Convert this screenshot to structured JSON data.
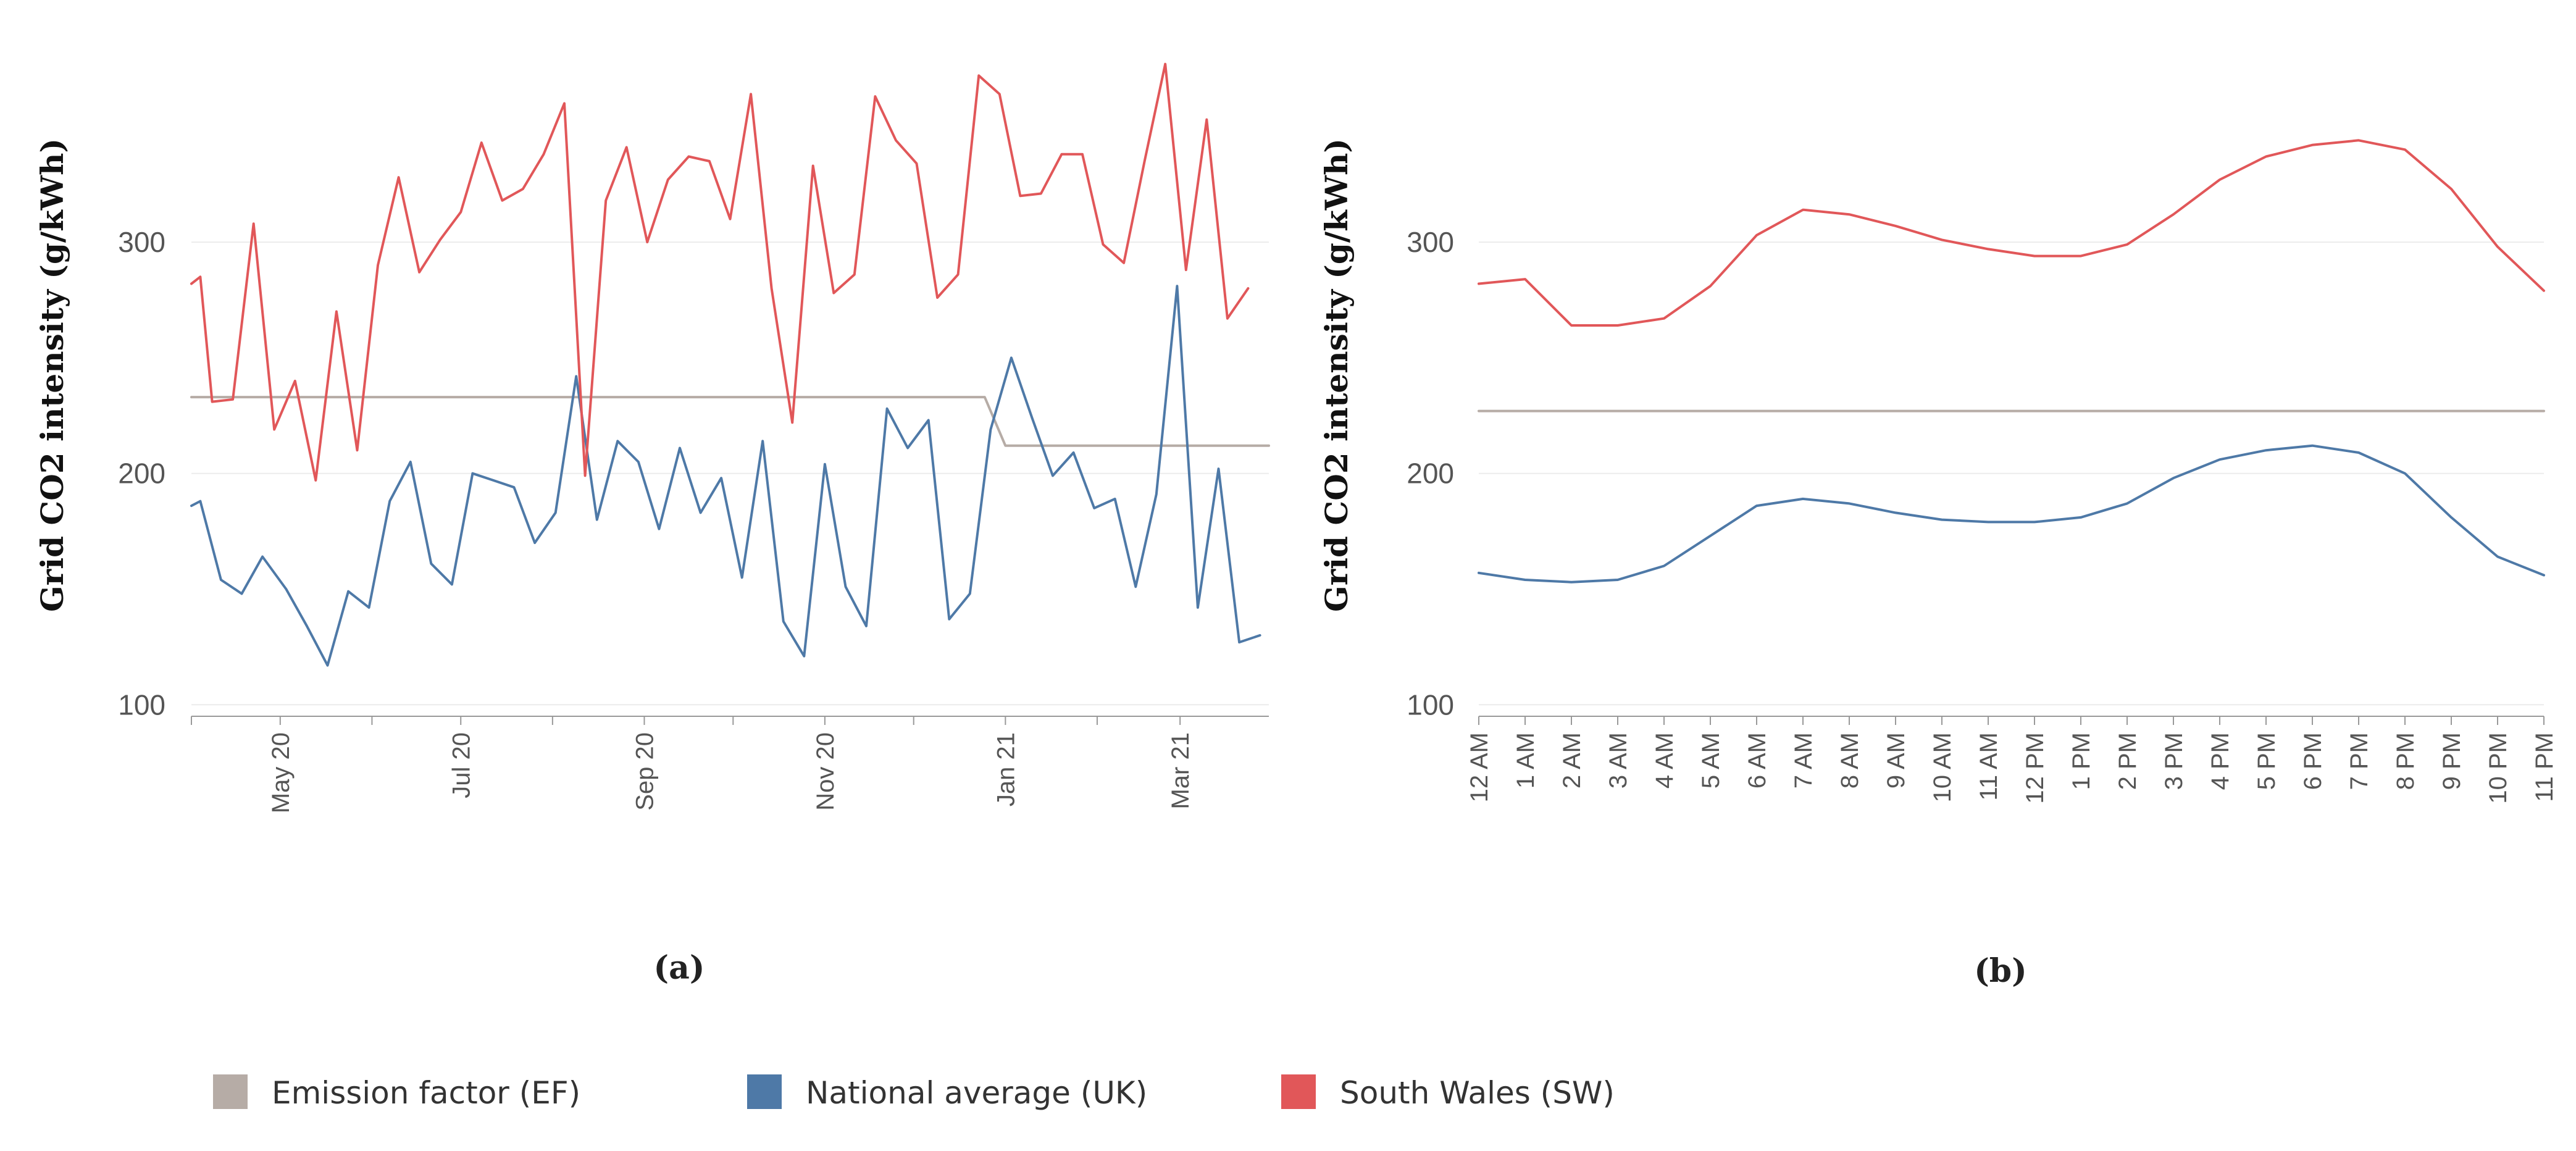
{
  "chart_data": [
    {
      "type": "line",
      "ylabel": "Grid CO2 intensity (g/kWh)",
      "caption": "(a)",
      "ylim": [
        95,
        390
      ],
      "yticks": [
        100,
        200,
        300
      ],
      "x_date_start": "2020-04-01",
      "x_date_end": "2021-03-31",
      "xticks": [
        {
          "label": "May 20",
          "date": "2020-05-01"
        },
        {
          "label": "Jul 20",
          "date": "2020-07-01"
        },
        {
          "label": "Sep 20",
          "date": "2020-09-01"
        },
        {
          "label": "Nov 20",
          "date": "2020-11-01"
        },
        {
          "label": "Jan 21",
          "date": "2021-01-01"
        },
        {
          "label": "Mar 21",
          "date": "2021-03-01"
        }
      ],
      "series": [
        {
          "name": "Emission factor (EF)",
          "color": "#b6aca6",
          "points": [
            [
              "2020-04-01",
              233
            ],
            [
              "2020-12-25",
              233
            ],
            [
              "2021-01-01",
              212
            ],
            [
              "2021-03-31",
              212
            ]
          ]
        },
        {
          "name": "National average (UK)",
          "color": "#4e79a7",
          "points": [
            [
              "2020-04-01",
              186
            ],
            [
              "2020-04-04",
              188
            ],
            [
              "2020-04-11",
              154
            ],
            [
              "2020-04-18",
              148
            ],
            [
              "2020-04-25",
              164
            ],
            [
              "2020-05-03",
              150
            ],
            [
              "2020-05-10",
              134
            ],
            [
              "2020-05-17",
              117
            ],
            [
              "2020-05-24",
              149
            ],
            [
              "2020-05-31",
              142
            ],
            [
              "2020-06-07",
              188
            ],
            [
              "2020-06-14",
              205
            ],
            [
              "2020-06-21",
              161
            ],
            [
              "2020-06-28",
              152
            ],
            [
              "2020-07-05",
              200
            ],
            [
              "2020-07-12",
              197
            ],
            [
              "2020-07-19",
              194
            ],
            [
              "2020-07-26",
              170
            ],
            [
              "2020-08-02",
              183
            ],
            [
              "2020-08-09",
              242
            ],
            [
              "2020-08-16",
              180
            ],
            [
              "2020-08-23",
              214
            ],
            [
              "2020-08-30",
              205
            ],
            [
              "2020-09-06",
              176
            ],
            [
              "2020-09-13",
              211
            ],
            [
              "2020-09-20",
              183
            ],
            [
              "2020-09-27",
              198
            ],
            [
              "2020-10-04",
              155
            ],
            [
              "2020-10-11",
              214
            ],
            [
              "2020-10-18",
              136
            ],
            [
              "2020-10-25",
              121
            ],
            [
              "2020-11-01",
              204
            ],
            [
              "2020-11-08",
              151
            ],
            [
              "2020-11-15",
              134
            ],
            [
              "2020-11-22",
              228
            ],
            [
              "2020-11-29",
              211
            ],
            [
              "2020-12-06",
              223
            ],
            [
              "2020-12-13",
              137
            ],
            [
              "2020-12-20",
              148
            ],
            [
              "2020-12-27",
              219
            ],
            [
              "2021-01-03",
              250
            ],
            [
              "2021-01-10",
              224
            ],
            [
              "2021-01-17",
              199
            ],
            [
              "2021-01-24",
              209
            ],
            [
              "2021-01-31",
              185
            ],
            [
              "2021-02-07",
              189
            ],
            [
              "2021-02-14",
              151
            ],
            [
              "2021-02-21",
              191
            ],
            [
              "2021-02-28",
              281
            ],
            [
              "2021-03-07",
              142
            ],
            [
              "2021-03-14",
              202
            ],
            [
              "2021-03-21",
              127
            ],
            [
              "2021-03-28",
              130
            ]
          ]
        },
        {
          "name": "South Wales (SW)",
          "color": "#e15759",
          "points": [
            [
              "2020-04-01",
              282
            ],
            [
              "2020-04-04",
              285
            ],
            [
              "2020-04-08",
              231
            ],
            [
              "2020-04-15",
              232
            ],
            [
              "2020-04-22",
              308
            ],
            [
              "2020-04-29",
              219
            ],
            [
              "2020-05-06",
              240
            ],
            [
              "2020-05-13",
              197
            ],
            [
              "2020-05-20",
              270
            ],
            [
              "2020-05-27",
              210
            ],
            [
              "2020-06-03",
              290
            ],
            [
              "2020-06-10",
              328
            ],
            [
              "2020-06-17",
              287
            ],
            [
              "2020-06-24",
              301
            ],
            [
              "2020-07-01",
              313
            ],
            [
              "2020-07-08",
              343
            ],
            [
              "2020-07-15",
              318
            ],
            [
              "2020-07-22",
              323
            ],
            [
              "2020-07-29",
              338
            ],
            [
              "2020-08-05",
              360
            ],
            [
              "2020-08-12",
              199
            ],
            [
              "2020-08-19",
              318
            ],
            [
              "2020-08-26",
              341
            ],
            [
              "2020-09-02",
              300
            ],
            [
              "2020-09-09",
              327
            ],
            [
              "2020-09-16",
              337
            ],
            [
              "2020-09-23",
              335
            ],
            [
              "2020-09-30",
              310
            ],
            [
              "2020-10-07",
              364
            ],
            [
              "2020-10-14",
              280
            ],
            [
              "2020-10-21",
              222
            ],
            [
              "2020-10-28",
              333
            ],
            [
              "2020-11-04",
              278
            ],
            [
              "2020-11-11",
              286
            ],
            [
              "2020-11-18",
              363
            ],
            [
              "2020-11-25",
              344
            ],
            [
              "2020-12-02",
              334
            ],
            [
              "2020-12-09",
              276
            ],
            [
              "2020-12-16",
              286
            ],
            [
              "2020-12-23",
              372
            ],
            [
              "2020-12-30",
              364
            ],
            [
              "2021-01-06",
              320
            ],
            [
              "2021-01-13",
              321
            ],
            [
              "2021-01-20",
              338
            ],
            [
              "2021-01-27",
              338
            ],
            [
              "2021-02-03",
              299
            ],
            [
              "2021-02-10",
              291
            ],
            [
              "2021-02-17",
              335
            ],
            [
              "2021-02-24",
              377
            ],
            [
              "2021-03-03",
              288
            ],
            [
              "2021-03-10",
              353
            ],
            [
              "2021-03-17",
              267
            ],
            [
              "2021-03-24",
              280
            ]
          ]
        }
      ]
    },
    {
      "type": "line",
      "ylabel": "Grid CO2 intensity (g/kWh)",
      "caption": "(b)",
      "ylim": [
        95,
        390
      ],
      "yticks": [
        100,
        200,
        300
      ],
      "categories": [
        "12 AM",
        "1 AM",
        "2 AM",
        "3 AM",
        "4 AM",
        "5 AM",
        "6 AM",
        "7 AM",
        "8 AM",
        "9 AM",
        "10 AM",
        "11 AM",
        "12 PM",
        "1 PM",
        "2 PM",
        "3 PM",
        "4 PM",
        "5 PM",
        "6 PM",
        "7 PM",
        "8 PM",
        "9 PM",
        "10 PM",
        "11 PM"
      ],
      "series": [
        {
          "name": "Emission factor (EF)",
          "color": "#b6aca6",
          "values": [
            227,
            227,
            227,
            227,
            227,
            227,
            227,
            227,
            227,
            227,
            227,
            227,
            227,
            227,
            227,
            227,
            227,
            227,
            227,
            227,
            227,
            227,
            227,
            227
          ]
        },
        {
          "name": "National average (UK)",
          "color": "#4e79a7",
          "values": [
            157,
            154,
            153,
            154,
            160,
            173,
            186,
            189,
            187,
            183,
            180,
            179,
            179,
            181,
            187,
            198,
            206,
            210,
            212,
            209,
            200,
            181,
            164,
            156
          ]
        },
        {
          "name": "South Wales (SW)",
          "color": "#e15759",
          "values": [
            282,
            284,
            264,
            264,
            267,
            281,
            303,
            314,
            312,
            307,
            301,
            297,
            294,
            294,
            299,
            312,
            327,
            337,
            342,
            344,
            340,
            323,
            298,
            279
          ]
        }
      ]
    }
  ],
  "legend": [
    {
      "label": "Emission factor (EF)",
      "color": "#b6aca6"
    },
    {
      "label": "National average (UK)",
      "color": "#4e79a7"
    },
    {
      "label": "South Wales (SW)",
      "color": "#e15759"
    }
  ]
}
